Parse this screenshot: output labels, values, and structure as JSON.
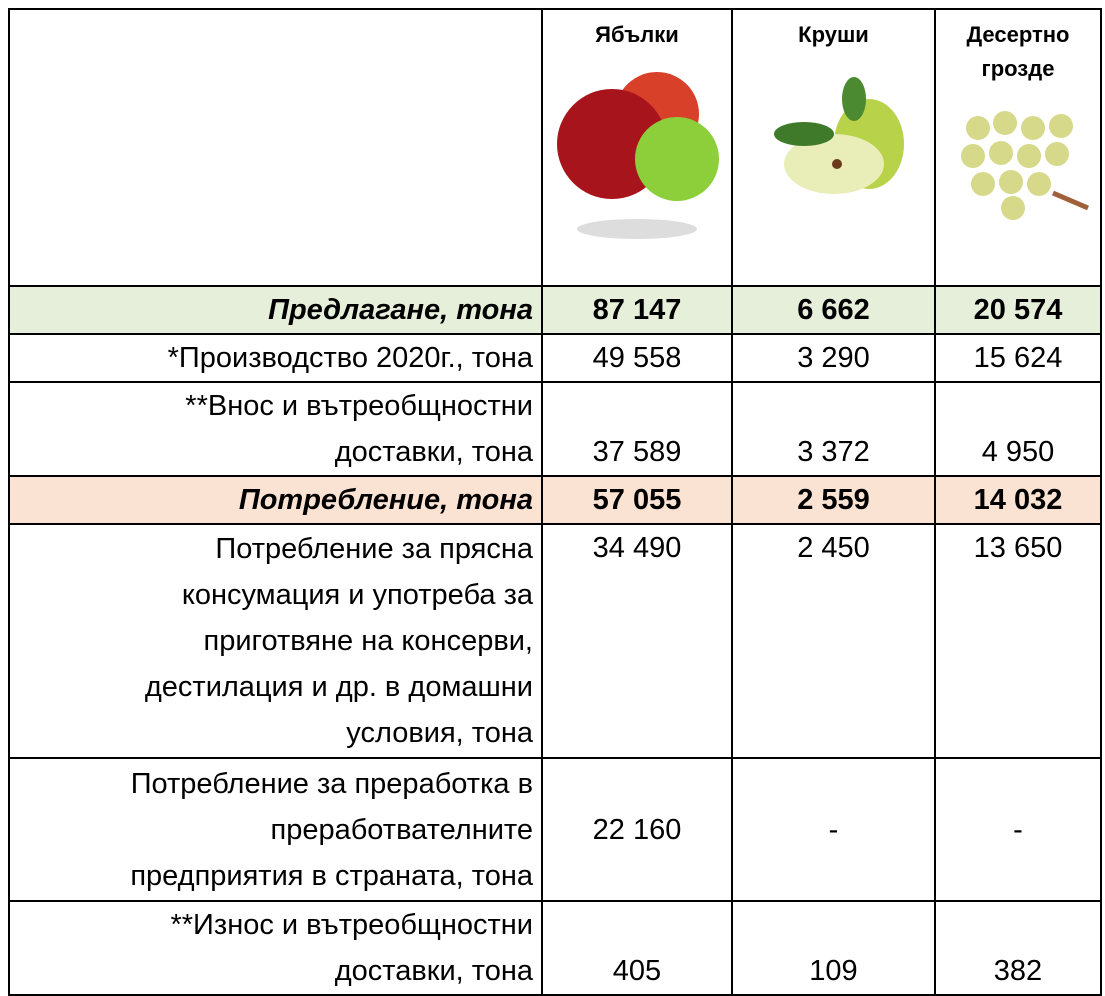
{
  "header": {
    "columns": [
      "Ябълки",
      "Круши",
      "Десертно грозде"
    ]
  },
  "table": {
    "rows": [
      {
        "label": [
          "Предлагане, тона"
        ],
        "values": [
          "87 147",
          "6 662",
          "20 574"
        ]
      },
      {
        "label": [
          "*Производство 2020г., тона"
        ],
        "values": [
          "49 558",
          "3 290",
          "15 624"
        ]
      },
      {
        "label": [
          "**Внос и вътреобщностни",
          "доставки, тона"
        ],
        "values": [
          "37 589",
          "3 372",
          "4 950"
        ]
      },
      {
        "label": [
          "Потребление, тона"
        ],
        "values": [
          "57 055",
          "2 559",
          "14 032"
        ]
      },
      {
        "label": [
          "Потребление за прясна",
          "консумация и употреба за",
          "приготвяне на консерви,",
          "дестилация и др. в домашни",
          "условия, тона"
        ],
        "values": [
          "34 490",
          "2 450",
          "13 650"
        ]
      },
      {
        "label": [
          "Потребление за преработка в",
          "преработвателните",
          "предприятия в страната, тона"
        ],
        "values": [
          "22 160",
          "-",
          "-"
        ]
      },
      {
        "label": [
          "**Износ и вътреобщностни",
          "доставки, тона"
        ],
        "values": [
          "405",
          "109",
          "382"
        ]
      }
    ]
  }
}
